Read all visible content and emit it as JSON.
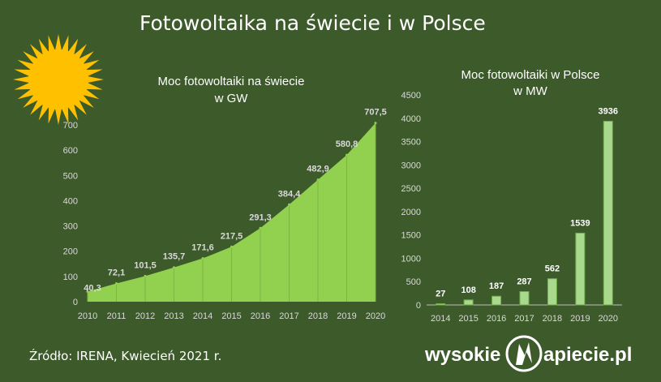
{
  "page": {
    "title": "Fotowoltaika na świecie i w Polsce"
  },
  "source": "Źródło: IRENA, Kwiecień 2021 r.",
  "logo": {
    "part1": "wysokie",
    "part2": "apiecie.pl"
  },
  "colors": {
    "background": "#3c5a2a",
    "area_fill": "#92d050",
    "bar_fill": "#a9d98c",
    "bar_stroke": "#70ad47",
    "sun": "#ffc000",
    "text": "#ffffff",
    "axis_text": "#d9d9d9"
  },
  "chart_data": [
    {
      "type": "area",
      "title": "Moc fotowoltaiki na świecie",
      "subtitle": "w GW",
      "x": [
        "2010",
        "2011",
        "2012",
        "2013",
        "2014",
        "2015",
        "2016",
        "2017",
        "2018",
        "2019",
        "2020"
      ],
      "values": [
        40.3,
        72.1,
        101.5,
        135.7,
        171.6,
        217.5,
        291.3,
        384.4,
        482.9,
        580.8,
        707.5
      ],
      "labels": [
        "40,3",
        "72,1",
        "101,5",
        "135,7",
        "171,6",
        "217,5",
        "291,3",
        "384,4",
        "482,9",
        "580,8",
        "707,5"
      ],
      "yticks": [
        "0",
        "100",
        "200",
        "300",
        "400",
        "500",
        "600",
        "700"
      ],
      "ylim": [
        0,
        700
      ],
      "grid": false
    },
    {
      "type": "bar",
      "title": "Moc fotowoltaiki w Polsce",
      "subtitle": "w MW",
      "categories": [
        "2014",
        "2015",
        "2016",
        "2017",
        "2018",
        "2019",
        "2020"
      ],
      "values": [
        27,
        108,
        187,
        287,
        562,
        1539,
        3936
      ],
      "labels": [
        "27",
        "108",
        "187",
        "287",
        "562",
        "1539",
        "3936"
      ],
      "yticks": [
        "0",
        "500",
        "1000",
        "1500",
        "2000",
        "2500",
        "3000",
        "3500",
        "4000",
        "4500"
      ],
      "ylim": [
        0,
        4500
      ],
      "grid": false
    }
  ]
}
